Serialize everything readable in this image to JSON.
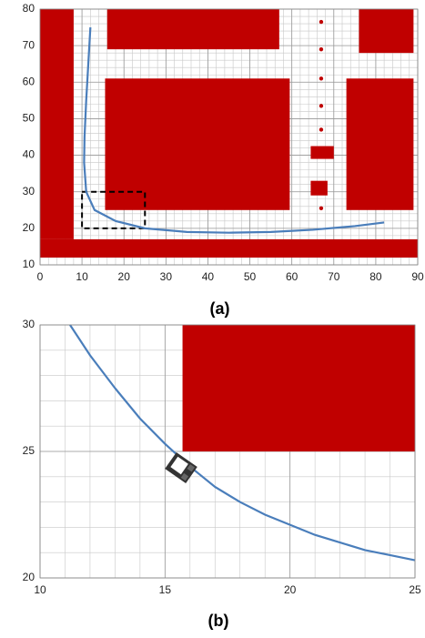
{
  "chart_data": [
    {
      "type": "line",
      "caption": "(a)",
      "xlim": [
        0,
        90
      ],
      "ylim": [
        10,
        80
      ],
      "xticks": [
        0,
        10,
        20,
        30,
        40,
        50,
        60,
        70,
        80,
        90
      ],
      "yticks": [
        10,
        20,
        30,
        40,
        50,
        60,
        70,
        80
      ],
      "grid_step": 2,
      "obstacle_color": "#c00000",
      "obstacles": [
        {
          "x": [
            0,
            8
          ],
          "y": [
            17,
            80
          ]
        },
        {
          "x": [
            0,
            90
          ],
          "y": [
            12,
            17
          ]
        },
        {
          "x": [
            16,
            57
          ],
          "y": [
            69,
            80
          ]
        },
        {
          "x": [
            15.5,
            59.5
          ],
          "y": [
            25,
            61
          ]
        },
        {
          "x": [
            76,
            89
          ],
          "y": [
            68,
            80
          ]
        },
        {
          "x": [
            73,
            89
          ],
          "y": [
            25,
            61
          ]
        },
        {
          "x": [
            64.5,
            70
          ],
          "y": [
            39,
            42.5
          ]
        },
        {
          "x": [
            64.5,
            68.5
          ],
          "y": [
            29,
            33
          ]
        }
      ],
      "markers": {
        "x": [
          67,
          67,
          67,
          67,
          67,
          67
        ],
        "y": [
          76.5,
          69,
          61,
          53.5,
          47,
          25.5
        ]
      },
      "region": {
        "x": [
          10,
          25
        ],
        "y": [
          20,
          30
        ]
      },
      "series": [
        {
          "color": "#4a7ebb",
          "x": [
            12,
            11.5,
            11,
            10.6,
            10.5,
            11,
            13,
            18,
            25,
            35,
            45,
            55,
            65,
            75,
            82
          ],
          "values": [
            75,
            65,
            55,
            45,
            38,
            30,
            25,
            22,
            20,
            19,
            18.8,
            19,
            19.6,
            20.6,
            21.6
          ]
        }
      ]
    },
    {
      "type": "line",
      "caption": "(b)",
      "xlim": [
        10,
        25
      ],
      "ylim": [
        20,
        30
      ],
      "xticks": [
        10,
        15,
        20,
        25
      ],
      "yticks": [
        20,
        25,
        30
      ],
      "grid_step": 1,
      "obstacle_color": "#c00000",
      "obstacles": [
        {
          "x": [
            15.7,
            25
          ],
          "y": [
            25,
            30
          ]
        }
      ],
      "series": [
        {
          "color": "#4a7ebb",
          "x": [
            11.2,
            12,
            13,
            14,
            15,
            16,
            17,
            18,
            19,
            20,
            21,
            22,
            23,
            24,
            25
          ],
          "values": [
            30,
            28.8,
            27.5,
            26.3,
            25.3,
            24.4,
            23.6,
            23,
            22.5,
            22.1,
            21.7,
            21.4,
            21.1,
            20.9,
            20.7
          ]
        }
      ]
    }
  ]
}
